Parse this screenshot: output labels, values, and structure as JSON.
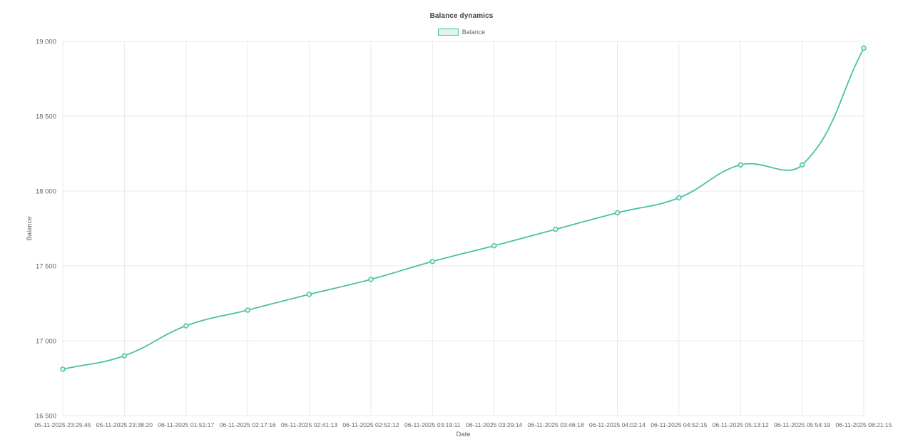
{
  "page": {
    "background": "#ffffff"
  },
  "chart_data": {
    "type": "line",
    "title": "Balance dynamics",
    "xlabel": "Date",
    "ylabel": "Balance",
    "legend_position": "top",
    "grid": true,
    "ylim": [
      16500,
      19000
    ],
    "y_ticks": [
      {
        "value": 16500,
        "label": "16 500"
      },
      {
        "value": 17000,
        "label": "17 000"
      },
      {
        "value": 17500,
        "label": "17 500"
      },
      {
        "value": 18000,
        "label": "18 000"
      },
      {
        "value": 18500,
        "label": "18 500"
      },
      {
        "value": 19000,
        "label": "19 000"
      }
    ],
    "categories": [
      "05-11-2025 23:25:45",
      "05-11-2025 23:38:20",
      "06-11-2025 01:51:17",
      "06-11-2025 02:17:16",
      "06-11-2025 02:41:13",
      "06-11-2025 02:52:12",
      "06-11-2025 03:19:11",
      "06-11-2025 03:29:14",
      "06-11-2025 03:46:18",
      "06-11-2025 04:02:14",
      "06-11-2025 04:52:15",
      "06-11-2025 05:13:12",
      "06-11-2025 05:54:19",
      "06-11-2025 08:21:15"
    ],
    "series": [
      {
        "name": "Balance",
        "smooth": true,
        "line_color": "#4ac0a8",
        "point_fill": "#ddf3ec",
        "legend_fill": "#ddf3ec",
        "values": [
          16810,
          16900,
          17100,
          17205,
          17310,
          17410,
          17530,
          17635,
          17745,
          17855,
          17955,
          18175,
          18175,
          18955
        ]
      }
    ]
  }
}
